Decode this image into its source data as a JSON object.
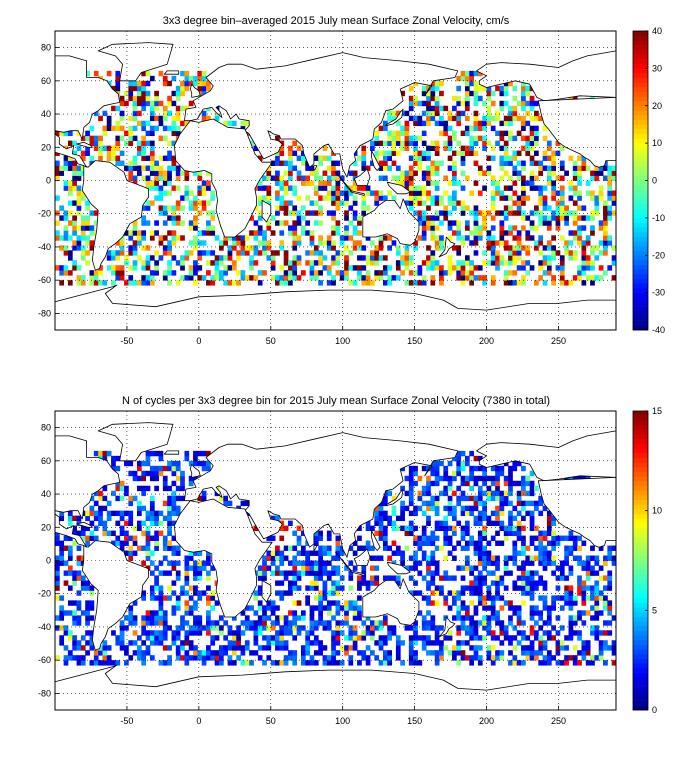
{
  "chart_data": [
    {
      "type": "heatmap",
      "title": "3x3 degree bin–averaged 2015 July mean Surface Zonal Velocity, cm/s",
      "xlim": [
        -100,
        290
      ],
      "ylim": [
        -90,
        90
      ],
      "x_ticks": [
        -50,
        0,
        50,
        100,
        150,
        200,
        250
      ],
      "y_ticks": [
        80,
        60,
        40,
        20,
        0,
        -20,
        -40,
        -60,
        -80
      ],
      "colorbar": {
        "min": -40,
        "max": 40,
        "ticks": [
          40,
          30,
          20,
          10,
          0,
          -10,
          -20,
          -30,
          -40
        ],
        "colormap": "jet"
      },
      "bin_size_deg": 3,
      "grid": true,
      "field": "surface zonal velocity (cm/s)"
    },
    {
      "type": "heatmap",
      "title": "N of cycles per 3x3 degree bin for 2015 July mean Surface Zonal Velocity (7380 in total)",
      "xlim": [
        -100,
        290
      ],
      "ylim": [
        -90,
        90
      ],
      "x_ticks": [
        -50,
        0,
        50,
        100,
        150,
        200,
        250
      ],
      "y_ticks": [
        80,
        60,
        40,
        20,
        0,
        -20,
        -40,
        -60,
        -80
      ],
      "colorbar": {
        "min": 0,
        "max": 15,
        "ticks": [
          15,
          10,
          5,
          0
        ],
        "colormap": "jet"
      },
      "bin_size_deg": 3,
      "grid": true,
      "total_cycles": 7380
    }
  ]
}
